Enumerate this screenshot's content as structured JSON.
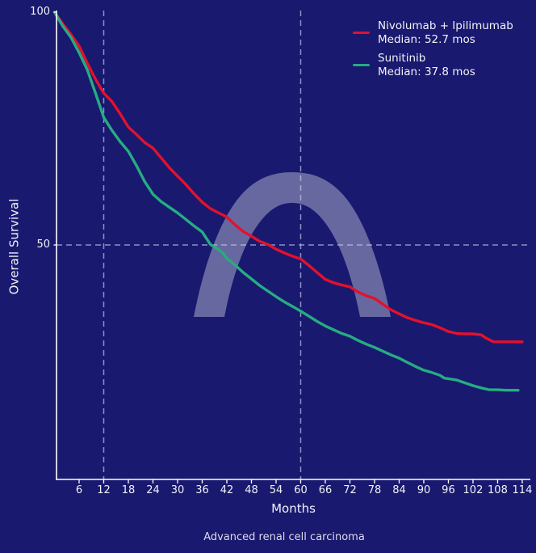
{
  "palette": {
    "background": "#191970",
    "text": "#f2f2f6",
    "caption_text": "#dcdce8",
    "axis": "#ffffff",
    "gridline": "#a9b0d6",
    "watermark": "#c9c9de",
    "nivolumab_color": "#e3112b",
    "sunitinib_color": "#26ac82"
  },
  "legend": {
    "entries": [
      {
        "label": "Nivolumab + Ipilimumab",
        "sublabel": "Median: 52.7 mos"
      },
      {
        "label": "Sunitinib",
        "sublabel": "Median: 37.8 mos"
      }
    ]
  },
  "axes": {
    "y_label": "Overall Survival",
    "x_label": "Months",
    "y_ticks": [
      {
        "value": 100,
        "label": "100"
      },
      {
        "value": 50,
        "label": "50"
      }
    ],
    "x_ticks": [
      6,
      12,
      18,
      24,
      30,
      36,
      42,
      48,
      54,
      60,
      66,
      72,
      78,
      84,
      90,
      96,
      102,
      108,
      114
    ]
  },
  "caption": "Advanced renal cell carcinoma",
  "chart_data": {
    "type": "line",
    "subtype": "kaplan-meier-survival",
    "title": "",
    "xlabel": "Months",
    "ylabel": "Overall Survival",
    "xlim": [
      0,
      116
    ],
    "ylim": [
      0,
      100
    ],
    "grid": "reference-lines-only",
    "gridlines": {
      "x": [
        12,
        60
      ],
      "y": [
        50
      ],
      "style": "dashed"
    },
    "legend_position": "top-right",
    "watermark": {
      "shape": "arch",
      "color": "#c9c9de"
    },
    "series": [
      {
        "name": "Nivolumab + Ipilimumab",
        "median_months": 52.7,
        "color": "#e3112b",
        "points": [
          [
            0,
            100
          ],
          [
            2,
            97.5
          ],
          [
            4,
            95.2
          ],
          [
            6,
            92.7
          ],
          [
            8,
            89.0
          ],
          [
            10,
            85.6
          ],
          [
            12,
            82.6
          ],
          [
            14,
            80.8
          ],
          [
            16,
            78.2
          ],
          [
            18,
            75.3
          ],
          [
            20,
            73.7
          ],
          [
            22,
            72.0
          ],
          [
            24,
            70.8
          ],
          [
            26,
            68.7
          ],
          [
            28,
            66.6
          ],
          [
            30,
            64.8
          ],
          [
            32,
            63.0
          ],
          [
            34,
            61.0
          ],
          [
            36,
            59.2
          ],
          [
            38,
            57.8
          ],
          [
            40,
            56.9
          ],
          [
            42,
            56.0
          ],
          [
            44,
            54.3
          ],
          [
            46,
            52.9
          ],
          [
            48,
            51.9
          ],
          [
            50,
            50.8
          ],
          [
            52,
            50.1
          ],
          [
            54,
            49.1
          ],
          [
            56,
            48.3
          ],
          [
            58,
            47.6
          ],
          [
            60,
            47.0
          ],
          [
            62,
            45.6
          ],
          [
            64,
            44.1
          ],
          [
            66,
            42.6
          ],
          [
            68,
            41.9
          ],
          [
            70,
            41.4
          ],
          [
            72,
            41.0
          ],
          [
            74,
            39.9
          ],
          [
            76,
            39.1
          ],
          [
            78,
            38.5
          ],
          [
            80,
            37.3
          ],
          [
            82,
            36.1
          ],
          [
            84,
            35.2
          ],
          [
            86,
            34.4
          ],
          [
            88,
            33.8
          ],
          [
            90,
            33.3
          ],
          [
            92,
            32.9
          ],
          [
            94,
            32.2
          ],
          [
            96,
            31.4
          ],
          [
            98,
            31.0
          ],
          [
            100,
            30.9
          ],
          [
            102,
            30.9
          ],
          [
            104,
            30.7
          ],
          [
            105,
            30.1
          ],
          [
            107,
            29.2
          ],
          [
            110,
            29.2
          ],
          [
            114,
            29.2
          ]
        ]
      },
      {
        "name": "Sunitinib",
        "median_months": 37.8,
        "color": "#26ac82",
        "points": [
          [
            0,
            100
          ],
          [
            2,
            97.0
          ],
          [
            4,
            94.6
          ],
          [
            6,
            91.3
          ],
          [
            8,
            87.6
          ],
          [
            10,
            82.6
          ],
          [
            12,
            77.4
          ],
          [
            14,
            74.6
          ],
          [
            16,
            72.2
          ],
          [
            18,
            70.1
          ],
          [
            20,
            67.0
          ],
          [
            22,
            63.6
          ],
          [
            24,
            60.9
          ],
          [
            26,
            59.3
          ],
          [
            28,
            58.1
          ],
          [
            30,
            56.9
          ],
          [
            32,
            55.5
          ],
          [
            34,
            54.1
          ],
          [
            36,
            52.8
          ],
          [
            38,
            50.1
          ],
          [
            40,
            49.0
          ],
          [
            41,
            48.3
          ],
          [
            42,
            47.1
          ],
          [
            44,
            45.7
          ],
          [
            46,
            44.1
          ],
          [
            48,
            42.7
          ],
          [
            50,
            41.3
          ],
          [
            52,
            40.1
          ],
          [
            54,
            38.9
          ],
          [
            56,
            37.8
          ],
          [
            58,
            36.8
          ],
          [
            60,
            35.8
          ],
          [
            62,
            34.7
          ],
          [
            64,
            33.6
          ],
          [
            66,
            32.6
          ],
          [
            68,
            31.8
          ],
          [
            70,
            31.0
          ],
          [
            72,
            30.4
          ],
          [
            74,
            29.5
          ],
          [
            76,
            28.7
          ],
          [
            78,
            28.0
          ],
          [
            80,
            27.2
          ],
          [
            82,
            26.4
          ],
          [
            84,
            25.7
          ],
          [
            86,
            24.8
          ],
          [
            88,
            23.9
          ],
          [
            90,
            23.1
          ],
          [
            92,
            22.6
          ],
          [
            94,
            22.0
          ],
          [
            95,
            21.4
          ],
          [
            98,
            21.0
          ],
          [
            100,
            20.4
          ],
          [
            102,
            19.8
          ],
          [
            104,
            19.3
          ],
          [
            106,
            18.9
          ],
          [
            108,
            18.9
          ],
          [
            110,
            18.8
          ],
          [
            113,
            18.8
          ]
        ]
      }
    ]
  }
}
